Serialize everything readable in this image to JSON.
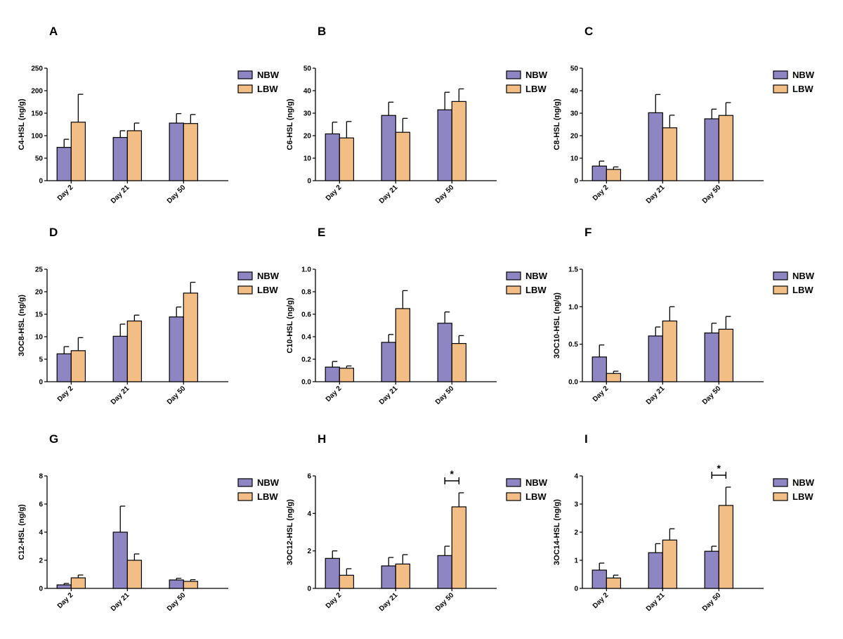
{
  "legend": [
    {
      "name": "NBW",
      "color": "#8E86C3"
    },
    {
      "name": "LBW",
      "color": "#F3BE85"
    }
  ],
  "chart_data": [
    {
      "type": "bar",
      "panel": "A",
      "ylabel": "C4-HSL (ng/g)",
      "ylim": [
        0,
        250
      ],
      "yticks": [
        "0",
        "50",
        "100",
        "150",
        "200",
        "250"
      ],
      "categories": [
        "Day 2",
        "Day 21",
        "Day 50"
      ],
      "series": [
        {
          "name": "NBW",
          "values": [
            74,
            96,
            128
          ],
          "errors": [
            18,
            15,
            21
          ]
        },
        {
          "name": "LBW",
          "values": [
            130,
            111,
            127
          ],
          "errors": [
            62,
            17,
            20
          ]
        }
      ],
      "significance": []
    },
    {
      "type": "bar",
      "panel": "B",
      "ylabel": "C6-HSL (ng/g)",
      "ylim": [
        0,
        50
      ],
      "yticks": [
        "0",
        "10",
        "20",
        "30",
        "40",
        "50"
      ],
      "categories": [
        "Day 2",
        "Day 21",
        "Day 50"
      ],
      "series": [
        {
          "name": "NBW",
          "values": [
            20.8,
            29,
            31.5
          ],
          "errors": [
            5.2,
            5.9,
            7.8
          ]
        },
        {
          "name": "LBW",
          "values": [
            19,
            21.5,
            35.2
          ],
          "errors": [
            7.3,
            6.2,
            5.6
          ]
        }
      ],
      "significance": []
    },
    {
      "type": "bar",
      "panel": "C",
      "ylabel": "C8-HSL (ng/g)",
      "ylim": [
        0,
        50
      ],
      "yticks": [
        "0",
        "10",
        "20",
        "30",
        "40",
        "50"
      ],
      "categories": [
        "Day 2",
        "Day 21",
        "Day 50"
      ],
      "series": [
        {
          "name": "NBW",
          "values": [
            6.5,
            30.2,
            27.5
          ],
          "errors": [
            2.2,
            8.1,
            4.3
          ]
        },
        {
          "name": "LBW",
          "values": [
            5,
            23.5,
            29
          ],
          "errors": [
            1.1,
            5.6,
            5.7
          ]
        }
      ],
      "significance": []
    },
    {
      "type": "bar",
      "panel": "D",
      "ylabel": "3OC8-HSL (ng/g)",
      "ylim": [
        0,
        25
      ],
      "yticks": [
        "0",
        "5",
        "10",
        "15",
        "20",
        "25"
      ],
      "categories": [
        "Day 2",
        "Day 21",
        "Day 50"
      ],
      "series": [
        {
          "name": "NBW",
          "values": [
            6.2,
            10.1,
            14.4
          ],
          "errors": [
            1.6,
            2.7,
            2.2
          ]
        },
        {
          "name": "LBW",
          "values": [
            6.9,
            13.5,
            19.7
          ],
          "errors": [
            2.9,
            1.3,
            2.4
          ]
        }
      ],
      "significance": []
    },
    {
      "type": "bar",
      "panel": "E",
      "ylabel": "C10-HSL (ng/g)",
      "ylim": [
        0,
        1.0
      ],
      "yticks": [
        "0.0",
        "0.2",
        "0.4",
        "0.6",
        "0.8",
        "1.0"
      ],
      "categories": [
        "Day 2",
        "Day 21",
        "Day 50"
      ],
      "series": [
        {
          "name": "NBW",
          "values": [
            0.13,
            0.35,
            0.52
          ],
          "errors": [
            0.05,
            0.07,
            0.1
          ]
        },
        {
          "name": "LBW",
          "values": [
            0.12,
            0.65,
            0.34
          ],
          "errors": [
            0.02,
            0.16,
            0.07
          ]
        }
      ],
      "significance": []
    },
    {
      "type": "bar",
      "panel": "F",
      "ylabel": "3OC10-HSL (ng/g)",
      "ylim": [
        0,
        1.5
      ],
      "yticks": [
        "0.0",
        "0.5",
        "1.0",
        "1.5"
      ],
      "categories": [
        "Day 2",
        "Day 21",
        "Day 50"
      ],
      "series": [
        {
          "name": "NBW",
          "values": [
            0.33,
            0.61,
            0.65
          ],
          "errors": [
            0.16,
            0.12,
            0.13
          ]
        },
        {
          "name": "LBW",
          "values": [
            0.11,
            0.81,
            0.7
          ],
          "errors": [
            0.03,
            0.19,
            0.17
          ]
        }
      ],
      "significance": []
    },
    {
      "type": "bar",
      "panel": "G",
      "ylabel": "C12-HSL (ng/g)",
      "ylim": [
        0,
        8
      ],
      "yticks": [
        "0",
        "2",
        "4",
        "6",
        "8"
      ],
      "categories": [
        "Day 2",
        "Day 21",
        "Day 50"
      ],
      "series": [
        {
          "name": "NBW",
          "values": [
            0.25,
            4.0,
            0.6
          ],
          "errors": [
            0.1,
            1.85,
            0.12
          ]
        },
        {
          "name": "LBW",
          "values": [
            0.75,
            2.0,
            0.5
          ],
          "errors": [
            0.2,
            0.45,
            0.12
          ]
        }
      ],
      "significance": []
    },
    {
      "type": "bar",
      "panel": "H",
      "ylabel": "3OC12-HSL (ng/g)",
      "ylim": [
        0,
        6
      ],
      "yticks": [
        "0",
        "2",
        "4",
        "6"
      ],
      "categories": [
        "Day 2",
        "Day 21",
        "Day 50"
      ],
      "series": [
        {
          "name": "NBW",
          "values": [
            1.6,
            1.2,
            1.75
          ],
          "errors": [
            0.4,
            0.45,
            0.5
          ]
        },
        {
          "name": "LBW",
          "values": [
            0.7,
            1.3,
            4.35
          ],
          "errors": [
            0.35,
            0.5,
            0.75
          ]
        }
      ],
      "significance": [
        {
          "category": "Day 50",
          "label": "*"
        }
      ]
    },
    {
      "type": "bar",
      "panel": "I",
      "ylabel": "3OC14-HSL (ng/g)",
      "ylim": [
        0,
        4
      ],
      "yticks": [
        "0",
        "1",
        "2",
        "3",
        "4"
      ],
      "categories": [
        "Day 2",
        "Day 21",
        "Day 50"
      ],
      "series": [
        {
          "name": "NBW",
          "values": [
            0.65,
            1.27,
            1.32
          ],
          "errors": [
            0.25,
            0.32,
            0.18
          ]
        },
        {
          "name": "LBW",
          "values": [
            0.37,
            1.72,
            2.95
          ],
          "errors": [
            0.1,
            0.4,
            0.65
          ]
        }
      ],
      "significance": [
        {
          "category": "Day 50",
          "label": "*"
        }
      ]
    }
  ]
}
